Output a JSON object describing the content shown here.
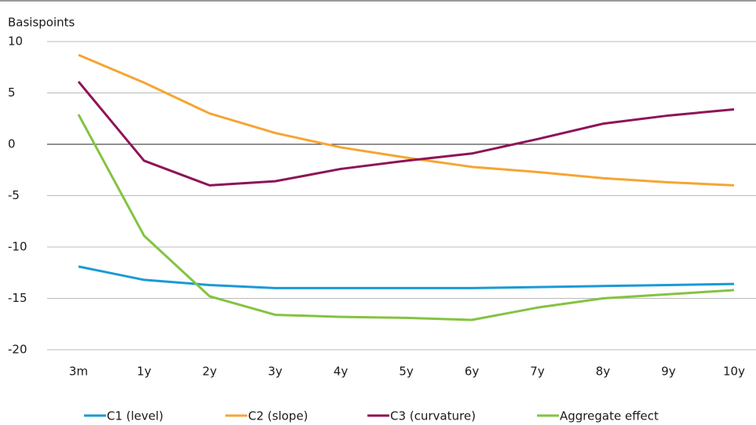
{
  "chart_data": {
    "type": "line",
    "y_label": "Basispoints",
    "categories": [
      "3m",
      "1y",
      "2y",
      "3y",
      "4y",
      "5y",
      "6y",
      "7y",
      "8y",
      "9y",
      "10y"
    ],
    "series": [
      {
        "name": "C1 (level)",
        "color": "#1a9ad6",
        "values": [
          -11.9,
          -13.2,
          -13.7,
          -14.0,
          -14.0,
          -14.0,
          -14.0,
          -13.9,
          -13.8,
          -13.7,
          -13.6
        ]
      },
      {
        "name": "C2 (slope)",
        "color": "#f5a534",
        "values": [
          8.7,
          6.0,
          3.0,
          1.1,
          -0.3,
          -1.3,
          -2.2,
          -2.7,
          -3.3,
          -3.7,
          -4.0
        ]
      },
      {
        "name": "C3 (curvature)",
        "color": "#8e1457",
        "values": [
          6.1,
          -1.6,
          -4.0,
          -3.6,
          -2.4,
          -1.6,
          -0.9,
          0.5,
          2.0,
          2.8,
          3.4
        ]
      },
      {
        "name": "Aggregate effect",
        "color": "#84c341",
        "values": [
          2.9,
          -8.9,
          -14.8,
          -16.6,
          -16.8,
          -16.9,
          -17.1,
          -15.9,
          -15.0,
          -14.6,
          -14.2
        ]
      }
    ],
    "ylim": [
      -20,
      10
    ],
    "yticks": [
      -20,
      -15,
      -10,
      -5,
      0,
      5,
      10
    ],
    "grid": true
  }
}
